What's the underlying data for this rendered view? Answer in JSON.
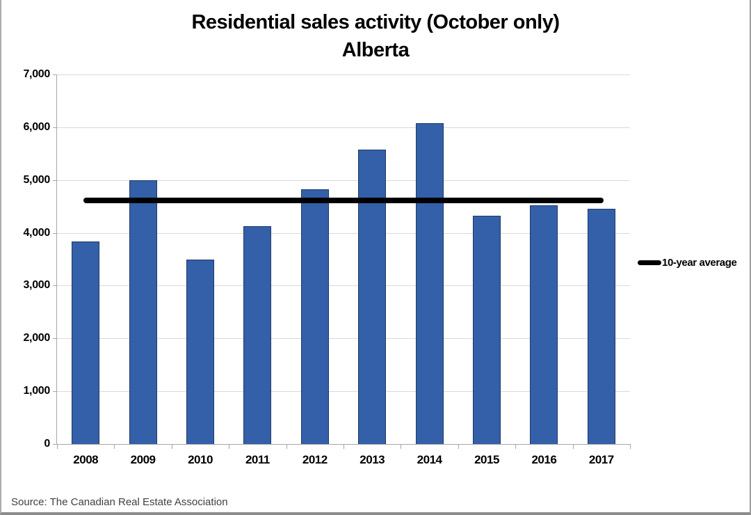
{
  "title": {
    "line1": "Residential sales activity (October only)",
    "line2": "Alberta"
  },
  "legend": {
    "items": [
      {
        "label": "10-year average",
        "marker_color": "#000000"
      }
    ]
  },
  "source_note": "Source: The Canadian Real Estate Association",
  "chart_data": {
    "type": "bar",
    "title": "Residential sales activity (October only)",
    "subtitle": "Alberta",
    "categories": [
      "2008",
      "2009",
      "2010",
      "2011",
      "2012",
      "2013",
      "2014",
      "2015",
      "2016",
      "2017"
    ],
    "series": [
      {
        "name": "Residential sales",
        "type": "bar",
        "values": [
          3840,
          4990,
          3500,
          4130,
          4820,
          5580,
          6080,
          4320,
          4520,
          4450
        ],
        "fill": "#3360A8",
        "border": "#1F3864"
      },
      {
        "name": "10-year average",
        "type": "constant-line",
        "value": 4620,
        "color": "#000000"
      }
    ],
    "xlabel": "",
    "ylabel": "",
    "ylim": [
      0,
      7000
    ],
    "yticks": [
      {
        "value": 0,
        "label": "0"
      },
      {
        "value": 1000,
        "label": "1,000"
      },
      {
        "value": 2000,
        "label": "2,000"
      },
      {
        "value": 3000,
        "label": "3,000"
      },
      {
        "value": 4000,
        "label": "4,000"
      },
      {
        "value": 5000,
        "label": "5,000"
      },
      {
        "value": 6000,
        "label": "6,000"
      },
      {
        "value": 7000,
        "label": "7,000"
      }
    ],
    "grid": true,
    "legend_position": "right",
    "colors": {
      "gridline": "#D9D9D9",
      "axis": "#A6A6A6",
      "text": "#000000",
      "background": "#FFFFFF"
    }
  }
}
